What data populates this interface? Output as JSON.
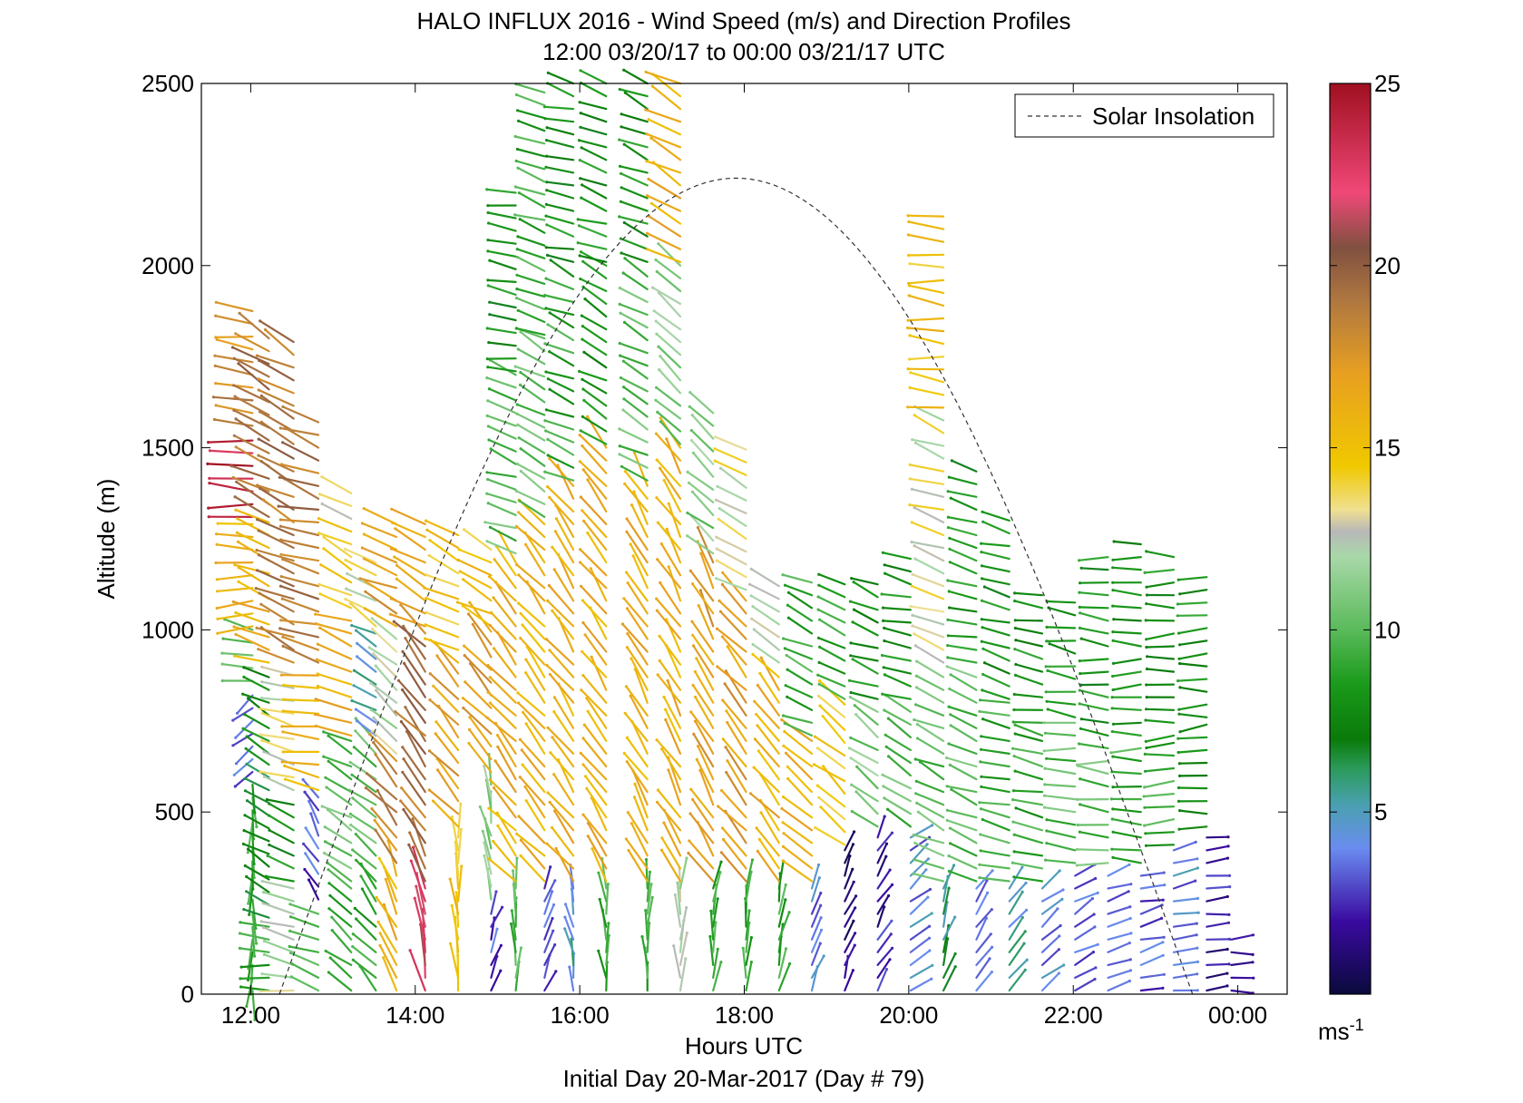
{
  "chart_data": {
    "type": "wind_barb_profile",
    "title": "HALO INFLUX 2016 - Wind Speed (m/s) and Direction Profiles",
    "subtitle": "12:00 03/20/17 to 00:00 03/21/17  UTC",
    "xlabel": "Hours UTC",
    "ylabel": "Altitude (m)",
    "footer": "Initial Day 20-Mar-2017 (Day # 79)",
    "xlim_hours": [
      11.4,
      24.6
    ],
    "ylim": [
      0,
      2500
    ],
    "x_ticks": [
      {
        "value": 12,
        "label": "12:00"
      },
      {
        "value": 14,
        "label": "14:00"
      },
      {
        "value": 16,
        "label": "16:00"
      },
      {
        "value": 18,
        "label": "18:00"
      },
      {
        "value": 20,
        "label": "20:00"
      },
      {
        "value": 22,
        "label": "22:00"
      },
      {
        "value": 24,
        "label": "00:00"
      }
    ],
    "y_ticks": [
      0,
      500,
      1000,
      1500,
      2000,
      2500
    ],
    "legend": {
      "label": "Solar Insolation",
      "placement": "top-right",
      "style": "dashed"
    },
    "colorbar": {
      "min": 0,
      "max": 25,
      "ticks": [
        5,
        10,
        15,
        20,
        25
      ],
      "unit_base": "ms",
      "unit_exp": "-1",
      "stops": [
        {
          "v": 0,
          "c": "#0a0a3c"
        },
        {
          "v": 2,
          "c": "#3a0aa0"
        },
        {
          "v": 4,
          "c": "#6a8cf0"
        },
        {
          "v": 5.2,
          "c": "#4aa0b0"
        },
        {
          "v": 6.2,
          "c": "#2a9a5a"
        },
        {
          "v": 7,
          "c": "#0a7a0a"
        },
        {
          "v": 8.5,
          "c": "#1a9a1a"
        },
        {
          "v": 10,
          "c": "#5aba5a"
        },
        {
          "v": 12,
          "c": "#a8d8a8"
        },
        {
          "v": 12.7,
          "c": "#b8b8b8"
        },
        {
          "v": 13.3,
          "c": "#f0e090"
        },
        {
          "v": 14.5,
          "c": "#f0c800"
        },
        {
          "v": 17,
          "c": "#e8a020"
        },
        {
          "v": 19,
          "c": "#b07840"
        },
        {
          "v": 20.5,
          "c": "#805040"
        },
        {
          "v": 22,
          "c": "#f04878"
        },
        {
          "v": 25,
          "c": "#a01020"
        }
      ]
    },
    "solar_insolation": {
      "peak_hour": 17.9,
      "peak_altitude": 2240,
      "half_width_hours": 5.55
    },
    "wind_profiles": [
      {
        "hour": 12.0,
        "max_alt": 1880,
        "segments": [
          {
            "to": 250,
            "speed": 9,
            "dir": 180
          },
          {
            "to": 600,
            "speed": 9,
            "dir": 180
          },
          {
            "to": 850,
            "speed": 3,
            "dir": 230
          },
          {
            "to": 1000,
            "speed": 10,
            "dir": 280
          },
          {
            "to": 1300,
            "speed": 16,
            "dir": 270
          },
          {
            "to": 1550,
            "speed": 24,
            "dir": 270
          },
          {
            "to": 1880,
            "speed": 18,
            "dir": 275
          }
        ]
      },
      {
        "hour": 12.2,
        "max_alt": 1800,
        "segments": [
          {
            "to": 200,
            "speed": 9,
            "dir": 270
          },
          {
            "to": 650,
            "speed": 7,
            "dir": 300
          },
          {
            "to": 900,
            "speed": 8,
            "dir": 300
          },
          {
            "to": 1300,
            "speed": 16,
            "dir": 290
          },
          {
            "to": 1800,
            "speed": 19,
            "dir": 300
          }
        ]
      },
      {
        "hour": 12.5,
        "max_alt": 1790,
        "segments": [
          {
            "to": 300,
            "speed": 12,
            "dir": 280
          },
          {
            "to": 550,
            "speed": 8,
            "dir": 290
          },
          {
            "to": 900,
            "speed": 13,
            "dir": 285
          },
          {
            "to": 1500,
            "speed": 19,
            "dir": 295
          },
          {
            "to": 1790,
            "speed": 19,
            "dir": 300
          }
        ]
      },
      {
        "hour": 12.8,
        "max_alt": 1600,
        "segments": [
          {
            "to": 250,
            "speed": 9,
            "dir": 290
          },
          {
            "to": 550,
            "speed": 3,
            "dir": 330
          },
          {
            "to": 900,
            "speed": 16,
            "dir": 280
          },
          {
            "to": 1350,
            "speed": 19,
            "dir": 285
          },
          {
            "to": 1600,
            "speed": 19,
            "dir": 290
          }
        ]
      },
      {
        "hour": 13.2,
        "max_alt": 1400,
        "segments": [
          {
            "to": 300,
            "speed": 9,
            "dir": 310
          },
          {
            "to": 700,
            "speed": 10,
            "dir": 300
          },
          {
            "to": 1050,
            "speed": 16,
            "dir": 290
          },
          {
            "to": 1400,
            "speed": 14,
            "dir": 300
          }
        ]
      },
      {
        "hour": 13.5,
        "max_alt": 1200,
        "segments": [
          {
            "to": 300,
            "speed": 9,
            "dir": 320
          },
          {
            "to": 700,
            "speed": 10,
            "dir": 310
          },
          {
            "to": 1000,
            "speed": 5,
            "dir": 300
          },
          {
            "to": 1200,
            "speed": 13,
            "dir": 300
          }
        ]
      },
      {
        "hour": 13.75,
        "max_alt": 1300,
        "segments": [
          {
            "to": 350,
            "speed": 16,
            "dir": 335
          },
          {
            "to": 650,
            "speed": 18,
            "dir": 320
          },
          {
            "to": 1000,
            "speed": 12,
            "dir": 310
          },
          {
            "to": 1300,
            "speed": 17,
            "dir": 295
          }
        ]
      },
      {
        "hour": 14.1,
        "max_alt": 1320,
        "segments": [
          {
            "to": 300,
            "speed": 22,
            "dir": 350
          },
          {
            "to": 700,
            "speed": 19,
            "dir": 330
          },
          {
            "to": 1000,
            "speed": 19,
            "dir": 320
          },
          {
            "to": 1320,
            "speed": 17,
            "dir": 300
          }
        ]
      },
      {
        "hour": 14.5,
        "max_alt": 1280,
        "segments": [
          {
            "to": 450,
            "speed": 15,
            "dir": 355
          },
          {
            "to": 900,
            "speed": 17,
            "dir": 320
          },
          {
            "to": 1280,
            "speed": 15,
            "dir": 300
          }
        ]
      },
      {
        "hour": 14.9,
        "max_alt": 1250,
        "segments": [
          {
            "to": 250,
            "speed": 3,
            "dir": 20
          },
          {
            "to": 600,
            "speed": 11,
            "dir": 350
          },
          {
            "to": 1000,
            "speed": 17,
            "dir": 320
          },
          {
            "to": 1250,
            "speed": 15,
            "dir": 300
          }
        ]
      },
      {
        "hour": 15.2,
        "max_alt": 2200,
        "segments": [
          {
            "to": 300,
            "speed": 10,
            "dir": 0
          },
          {
            "to": 1200,
            "speed": 16,
            "dir": 320
          },
          {
            "to": 1700,
            "speed": 10,
            "dir": 290
          },
          {
            "to": 2200,
            "speed": 8,
            "dir": 280
          }
        ]
      },
      {
        "hour": 15.55,
        "max_alt": 2500,
        "segments": [
          {
            "to": 300,
            "speed": 3,
            "dir": 20
          },
          {
            "to": 1300,
            "speed": 16,
            "dir": 320
          },
          {
            "to": 1800,
            "speed": 10,
            "dir": 300
          },
          {
            "to": 2500,
            "speed": 9,
            "dir": 290
          }
        ]
      },
      {
        "hour": 15.9,
        "max_alt": 2500,
        "segments": [
          {
            "to": 300,
            "speed": 5,
            "dir": 350
          },
          {
            "to": 1400,
            "speed": 16,
            "dir": 325
          },
          {
            "to": 2000,
            "speed": 9,
            "dir": 295
          },
          {
            "to": 2500,
            "speed": 8,
            "dir": 285
          }
        ]
      },
      {
        "hour": 16.3,
        "max_alt": 2500,
        "segments": [
          {
            "to": 300,
            "speed": 9,
            "dir": 355
          },
          {
            "to": 1500,
            "speed": 16,
            "dir": 325
          },
          {
            "to": 2000,
            "speed": 8,
            "dir": 300
          },
          {
            "to": 2500,
            "speed": 8,
            "dir": 290
          }
        ]
      },
      {
        "hour": 16.8,
        "max_alt": 2500,
        "segments": [
          {
            "to": 300,
            "speed": 9,
            "dir": 0
          },
          {
            "to": 1400,
            "speed": 16,
            "dir": 330
          },
          {
            "to": 2000,
            "speed": 10,
            "dir": 300
          },
          {
            "to": 2500,
            "speed": 8,
            "dir": 295
          }
        ]
      },
      {
        "hour": 17.2,
        "max_alt": 2500,
        "segments": [
          {
            "to": 300,
            "speed": 12,
            "dir": 0
          },
          {
            "to": 1500,
            "speed": 16,
            "dir": 330
          },
          {
            "to": 2000,
            "speed": 11,
            "dir": 310
          },
          {
            "to": 2500,
            "speed": 16,
            "dir": 300
          }
        ]
      },
      {
        "hour": 17.6,
        "max_alt": 1600,
        "segments": [
          {
            "to": 300,
            "speed": 9,
            "dir": 5
          },
          {
            "to": 1200,
            "speed": 17,
            "dir": 330
          },
          {
            "to": 1600,
            "speed": 11,
            "dir": 310
          }
        ]
      },
      {
        "hour": 18.0,
        "max_alt": 1500,
        "segments": [
          {
            "to": 300,
            "speed": 9,
            "dir": 5
          },
          {
            "to": 1100,
            "speed": 17,
            "dir": 320
          },
          {
            "to": 1500,
            "speed": 13,
            "dir": 300
          }
        ]
      },
      {
        "hour": 18.4,
        "max_alt": 1150,
        "segments": [
          {
            "to": 300,
            "speed": 9,
            "dir": 10
          },
          {
            "to": 900,
            "speed": 16,
            "dir": 320
          },
          {
            "to": 1150,
            "speed": 12,
            "dir": 300
          }
        ]
      },
      {
        "hour": 18.8,
        "max_alt": 1160,
        "segments": [
          {
            "to": 300,
            "speed": 4,
            "dir": 20
          },
          {
            "to": 700,
            "speed": 16,
            "dir": 315
          },
          {
            "to": 1160,
            "speed": 9,
            "dir": 295
          }
        ]
      },
      {
        "hour": 19.2,
        "max_alt": 1150,
        "segments": [
          {
            "to": 400,
            "speed": 1,
            "dir": 20
          },
          {
            "to": 800,
            "speed": 15,
            "dir": 310
          },
          {
            "to": 1150,
            "speed": 9,
            "dir": 290
          }
        ]
      },
      {
        "hour": 19.6,
        "max_alt": 1150,
        "segments": [
          {
            "to": 450,
            "speed": 2,
            "dir": 30
          },
          {
            "to": 800,
            "speed": 11,
            "dir": 305
          },
          {
            "to": 1150,
            "speed": 8,
            "dir": 290
          }
        ]
      },
      {
        "hour": 20.0,
        "max_alt": 1200,
        "segments": [
          {
            "to": 450,
            "speed": 4,
            "dir": 50
          },
          {
            "to": 800,
            "speed": 10,
            "dir": 300
          },
          {
            "to": 1200,
            "speed": 8,
            "dir": 285
          }
        ]
      },
      {
        "hour": 20.4,
        "max_alt": 2140,
        "segments": [
          {
            "to": 300,
            "speed": 6,
            "dir": 20
          },
          {
            "to": 900,
            "speed": 10,
            "dir": 295
          },
          {
            "to": 1600,
            "speed": 13,
            "dir": 290
          },
          {
            "to": 2140,
            "speed": 15,
            "dir": 275
          }
        ]
      },
      {
        "hour": 20.8,
        "max_alt": 1450,
        "segments": [
          {
            "to": 300,
            "speed": 4,
            "dir": 30
          },
          {
            "to": 900,
            "speed": 10,
            "dir": 290
          },
          {
            "to": 1450,
            "speed": 8,
            "dir": 285
          }
        ]
      },
      {
        "hour": 21.2,
        "max_alt": 1300,
        "segments": [
          {
            "to": 300,
            "speed": 5,
            "dir": 40
          },
          {
            "to": 800,
            "speed": 9,
            "dir": 285
          },
          {
            "to": 1300,
            "speed": 8,
            "dir": 285
          }
        ]
      },
      {
        "hour": 21.6,
        "max_alt": 1100,
        "segments": [
          {
            "to": 300,
            "speed": 4,
            "dir": 50
          },
          {
            "to": 700,
            "speed": 9,
            "dir": 280
          },
          {
            "to": 1100,
            "speed": 8,
            "dir": 280
          }
        ]
      },
      {
        "hour": 22.0,
        "max_alt": 1100,
        "segments": [
          {
            "to": 350,
            "speed": 3,
            "dir": 60
          },
          {
            "to": 750,
            "speed": 10,
            "dir": 275
          },
          {
            "to": 1100,
            "speed": 8,
            "dir": 280
          }
        ]
      },
      {
        "hour": 22.4,
        "max_alt": 1200,
        "segments": [
          {
            "to": 350,
            "speed": 4,
            "dir": 70
          },
          {
            "to": 700,
            "speed": 10,
            "dir": 275
          },
          {
            "to": 1200,
            "speed": 8,
            "dir": 275
          }
        ]
      },
      {
        "hour": 22.8,
        "max_alt": 1250,
        "segments": [
          {
            "to": 350,
            "speed": 3,
            "dir": 75
          },
          {
            "to": 700,
            "speed": 9,
            "dir": 270
          },
          {
            "to": 1250,
            "speed": 8,
            "dir": 270
          }
        ]
      },
      {
        "hour": 23.2,
        "max_alt": 1220,
        "segments": [
          {
            "to": 400,
            "speed": 4,
            "dir": 80
          },
          {
            "to": 700,
            "speed": 9,
            "dir": 270
          },
          {
            "to": 1220,
            "speed": 8,
            "dir": 270
          }
        ]
      },
      {
        "hour": 23.6,
        "max_alt": 1160,
        "segments": [
          {
            "to": 450,
            "speed": 2,
            "dir": 80
          },
          {
            "to": 750,
            "speed": 8,
            "dir": 265
          },
          {
            "to": 1160,
            "speed": 8,
            "dir": 270
          }
        ]
      },
      {
        "hour": 23.9,
        "max_alt": 150,
        "segments": [
          {
            "to": 150,
            "speed": 2,
            "dir": 90
          }
        ]
      }
    ]
  }
}
